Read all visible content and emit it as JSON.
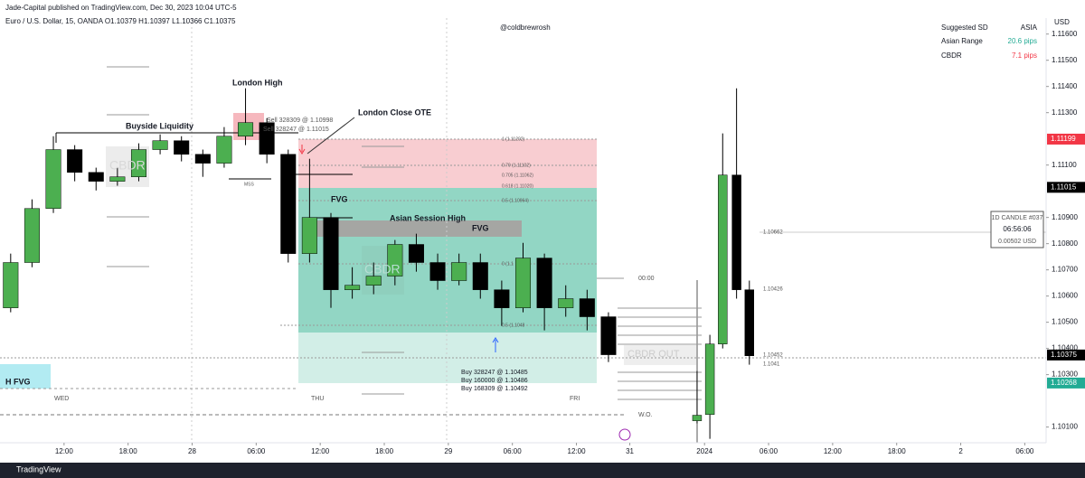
{
  "header": {
    "publisher": "Jade-Capital published on TradingView.com, Dec 30, 2023 10:04 UTC-5",
    "symbol": "Euro / U.S. Dollar, 15, OANDA  O1.10379 H1.10397 L1.10366 C1.10375",
    "watermark": "@coldbrewrosh",
    "currency": "USD"
  },
  "info_table": {
    "rows": [
      [
        "Suggested SD",
        "ASIA"
      ],
      [
        "Asian Range",
        "20.6 pips"
      ],
      [
        "CBDR",
        "7.1 pips"
      ]
    ]
  },
  "countdown": {
    "title": "1D CANDLE #037",
    "time": "06:56:06",
    "range": "0.00502 USD"
  },
  "annotations": {
    "london_high": "London High",
    "buyside": "Buyside Liquidity",
    "london_close": "London Close OTE",
    "sell1": "Sell 328309 @ 1.10998",
    "sell2": "Sell 328247 @ 1.11015",
    "fvg1": "FVG",
    "fvg2": "FVG",
    "asian_high": "Asian Session High",
    "mss": "MSS",
    "cbdr1": "CBDR",
    "cbdr2": "CBDR",
    "cbdr_out": "CBDR OUT",
    "fib1": "1 (1.11202)",
    "fib079": "0.79 (1.11102)",
    "fib0705": "0.705 (1.11062)",
    "fib0618": "0.618 (1.11020)",
    "fib05": "0.5 (1.10964)",
    "fib0": "0 (1.1",
    "fib05b": "0.5 (1.1048",
    "buy1": "Buy 328247 @ 1.10485",
    "buy2": "Buy 160000 @ 1.10486",
    "buy3": "Buy 168309 @ 1.10492",
    "midnight": "00:00",
    "wo": "W.O.",
    "lvl1": "1.10662",
    "lvl2": "1.10426",
    "lvl3": "1.10452",
    "lvl4": "1.1041",
    "hfvg": "H FVG",
    "wed": "WED",
    "thu": "THU",
    "fri": "FRI"
  },
  "footer": {
    "brand": "TradingView"
  },
  "chart_data": {
    "type": "candlestick",
    "up_color": "#4caf50",
    "down_color": "#000000",
    "xlim": [
      -6,
      92
    ],
    "ylim": [
      1.1004,
      1.1173
    ],
    "xticks": [
      {
        "value": 0,
        "label": "12:00"
      },
      {
        "value": 6,
        "label": "18:00"
      },
      {
        "value": 12,
        "label": "28"
      },
      {
        "value": 18,
        "label": "06:00"
      },
      {
        "value": 24,
        "label": "12:00"
      },
      {
        "value": 30,
        "label": "18:00"
      },
      {
        "value": 36,
        "label": "29"
      },
      {
        "value": 42,
        "label": "06:00"
      },
      {
        "value": 48,
        "label": "12:00"
      },
      {
        "value": 53,
        "label": "31"
      },
      {
        "value": 60,
        "label": "2024"
      },
      {
        "value": 66,
        "label": "06:00"
      },
      {
        "value": 72,
        "label": "12:00"
      },
      {
        "value": 78,
        "label": "18:00"
      },
      {
        "value": 84,
        "label": "2"
      },
      {
        "value": 90,
        "label": "06:00"
      }
    ],
    "yticks": [
      {
        "value": 1.116,
        "label": "1.11600"
      },
      {
        "value": 1.115,
        "label": "1.11500"
      },
      {
        "value": 1.114,
        "label": "1.11400"
      },
      {
        "value": 1.113,
        "label": "1.11300"
      },
      {
        "value": 1.111,
        "label": "1.11100"
      },
      {
        "value": 1.109,
        "label": "1.10900"
      },
      {
        "value": 1.108,
        "label": "1.10800"
      },
      {
        "value": 1.107,
        "label": "1.10700"
      },
      {
        "value": 1.106,
        "label": "1.10600"
      },
      {
        "value": 1.105,
        "label": "1.10500"
      },
      {
        "value": 1.104,
        "label": "1.10400"
      },
      {
        "value": 1.103,
        "label": "1.10300"
      },
      {
        "value": 1.101,
        "label": "1.10100"
      }
    ],
    "price_labels": [
      {
        "value": 1.11199,
        "label": "1.11199",
        "color": "#f23645"
      },
      {
        "value": 1.11015,
        "label": "1.11015",
        "color": "#000000"
      },
      {
        "value": 1.10375,
        "label": "1.10375",
        "color": "#000000"
      },
      {
        "value": 1.10268,
        "label": "1.10268",
        "color": "#22ab94"
      }
    ],
    "candles": [
      {
        "x": -5,
        "open": 1.10555,
        "high": 1.10762,
        "low": 1.10538,
        "close": 1.10728
      },
      {
        "x": -3,
        "open": 1.10728,
        "high": 1.10969,
        "low": 1.1071,
        "close": 1.10934
      },
      {
        "x": -1,
        "open": 1.10934,
        "high": 1.1121,
        "low": 1.10917,
        "close": 1.11159
      },
      {
        "x": 1,
        "open": 1.11159,
        "high": 1.11176,
        "low": 1.11038,
        "close": 1.11072
      },
      {
        "x": 3,
        "open": 1.11072,
        "high": 1.1109,
        "low": 1.11003,
        "close": 1.11038
      },
      {
        "x": 5,
        "open": 1.11038,
        "high": 1.1109,
        "low": 1.11021,
        "close": 1.11055
      },
      {
        "x": 7,
        "open": 1.11055,
        "high": 1.11183,
        "low": 1.11038,
        "close": 1.11159
      },
      {
        "x": 9,
        "open": 1.11159,
        "high": 1.11217,
        "low": 1.11141,
        "close": 1.11193
      },
      {
        "x": 11,
        "open": 1.11193,
        "high": 1.1121,
        "low": 1.11114,
        "close": 1.11141
      },
      {
        "x": 13,
        "open": 1.11141,
        "high": 1.11159,
        "low": 1.11055,
        "close": 1.11107
      },
      {
        "x": 15,
        "open": 1.11107,
        "high": 1.11245,
        "low": 1.1109,
        "close": 1.1121
      },
      {
        "x": 17,
        "open": 1.1121,
        "high": 1.11393,
        "low": 1.11176,
        "close": 1.11262
      },
      {
        "x": 19,
        "open": 1.11262,
        "high": 1.11279,
        "low": 1.11107,
        "close": 1.11141
      },
      {
        "x": 21,
        "open": 1.11141,
        "high": 1.11159,
        "low": 1.10728,
        "close": 1.10762
      },
      {
        "x": 23,
        "open": 1.10762,
        "high": 1.11124,
        "low": 1.10728,
        "close": 1.109
      },
      {
        "x": 25,
        "open": 1.109,
        "high": 1.10917,
        "low": 1.10555,
        "close": 1.10624
      },
      {
        "x": 27,
        "open": 1.10624,
        "high": 1.1071,
        "low": 1.1059,
        "close": 1.10641
      },
      {
        "x": 29,
        "open": 1.10641,
        "high": 1.10728,
        "low": 1.10607,
        "close": 1.10676
      },
      {
        "x": 31,
        "open": 1.10676,
        "high": 1.10814,
        "low": 1.10641,
        "close": 1.10797
      },
      {
        "x": 33,
        "open": 1.10797,
        "high": 1.10838,
        "low": 1.10693,
        "close": 1.10728
      },
      {
        "x": 35,
        "open": 1.10728,
        "high": 1.10762,
        "low": 1.10624,
        "close": 1.10659
      },
      {
        "x": 37,
        "open": 1.10659,
        "high": 1.10762,
        "low": 1.10641,
        "close": 1.10728
      },
      {
        "x": 39,
        "open": 1.10728,
        "high": 1.10762,
        "low": 1.1059,
        "close": 1.10624
      },
      {
        "x": 41,
        "open": 1.10624,
        "high": 1.10659,
        "low": 1.10486,
        "close": 1.10555
      },
      {
        "x": 43,
        "open": 1.10555,
        "high": 1.10803,
        "low": 1.10538,
        "close": 1.10745
      },
      {
        "x": 45,
        "open": 1.10745,
        "high": 1.10762,
        "low": 1.10469,
        "close": 1.10555
      },
      {
        "x": 47,
        "open": 1.10555,
        "high": 1.10641,
        "low": 1.10521,
        "close": 1.1059
      },
      {
        "x": 49,
        "open": 1.1059,
        "high": 1.10624,
        "low": 1.10469,
        "close": 1.10521
      },
      {
        "x": 51,
        "open": 1.10521,
        "high": 1.10538,
        "low": 1.10348,
        "close": 1.10376
      },
      {
        "x": 59.3,
        "open": 1.10124,
        "high": 1.10314,
        "low": 1.10114,
        "close": 1.10145
      },
      {
        "x": 60.5,
        "open": 1.10148,
        "high": 1.10452,
        "low": 1.10055,
        "close": 1.10417
      },
      {
        "x": 61.7,
        "open": 1.10417,
        "high": 1.11221,
        "low": 1.104,
        "close": 1.11062
      },
      {
        "x": 63,
        "open": 1.11062,
        "high": 1.11393,
        "low": 1.1059,
        "close": 1.10624
      },
      {
        "x": 64.2,
        "open": 1.10624,
        "high": 1.10659,
        "low": 1.10338,
        "close": 1.10372
      }
    ]
  }
}
